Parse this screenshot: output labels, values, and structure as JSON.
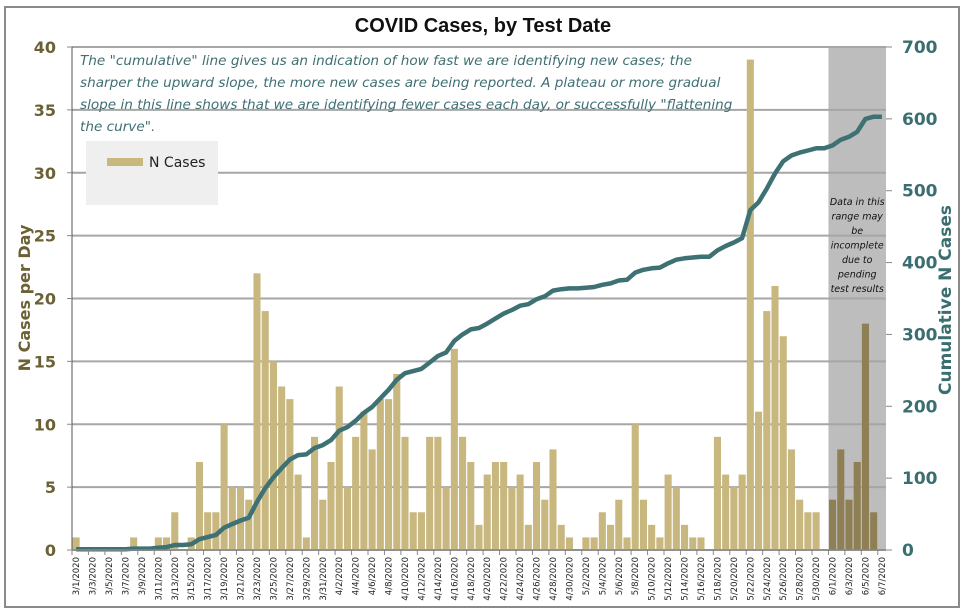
{
  "chart_data": {
    "type": "bar",
    "title": "COVID Cases, by Test Date",
    "annotation": "The \"cumulative\" line gives  us an indication of how fast we are identifying new cases; the sharper the upward slope, the more new cases are being reported. A plateau or more gradual slope in this line shows that we are identifying fewer cases each day, or successfully \"flattening the curve\".",
    "annotation_lines": [
      "The \"cumulative\" line gives  us an indication of how fast we are identifying new cases; the",
      "sharper the upward slope, the more new cases are being reported. A plateau or more gradual",
      "slope in this line shows that we are identifying fewer cases each day, or successfully \"flattening",
      "the curve\"."
    ],
    "shaded_region": {
      "start": "6/1/2020",
      "end": "6/7/2020",
      "note_lines": [
        "Data in this",
        "range  may",
        "be",
        "incomplete",
        "due to",
        "pending",
        "test results"
      ]
    },
    "legend": {
      "entries": [
        "N Cases"
      ],
      "placement": "top-left"
    },
    "ylabel": "N Cases per Day",
    "y2label": "Cumulative N Cases",
    "xlabel": "",
    "ylim": [
      0,
      40
    ],
    "y2lim": [
      0,
      700
    ],
    "yticks": [
      "0",
      "5",
      "10",
      "15",
      "20",
      "25",
      "30",
      "35",
      "40"
    ],
    "y2ticks": [
      "0",
      "100",
      "200",
      "300",
      "400",
      "500",
      "600",
      "700"
    ],
    "grid": true,
    "colors": {
      "bars": "#c8b77f",
      "bars_shaded": "#8f7f55",
      "line": "#3d7174",
      "shade": "#bdbdbd"
    },
    "dates": [
      "3/1/2020",
      "3/2/2020",
      "3/3/2020",
      "3/4/2020",
      "3/5/2020",
      "3/6/2020",
      "3/7/2020",
      "3/8/2020",
      "3/9/2020",
      "3/10/2020",
      "3/11/2020",
      "3/12/2020",
      "3/13/2020",
      "3/14/2020",
      "3/15/2020",
      "3/16/2020",
      "3/17/2020",
      "3/18/2020",
      "3/19/2020",
      "3/20/2020",
      "3/21/2020",
      "3/22/2020",
      "3/23/2020",
      "3/24/2020",
      "3/25/2020",
      "3/26/2020",
      "3/27/2020",
      "3/28/2020",
      "3/29/2020",
      "3/30/2020",
      "3/31/2020",
      "4/1/2020",
      "4/2/2020",
      "4/3/2020",
      "4/4/2020",
      "4/5/2020",
      "4/6/2020",
      "4/7/2020",
      "4/8/2020",
      "4/9/2020",
      "4/10/2020",
      "4/11/2020",
      "4/12/2020",
      "4/13/2020",
      "4/14/2020",
      "4/15/2020",
      "4/16/2020",
      "4/17/2020",
      "4/18/2020",
      "4/19/2020",
      "4/20/2020",
      "4/21/2020",
      "4/22/2020",
      "4/23/2020",
      "4/24/2020",
      "4/25/2020",
      "4/26/2020",
      "4/27/2020",
      "4/28/2020",
      "4/29/2020",
      "4/30/2020",
      "5/1/2020",
      "5/2/2020",
      "5/3/2020",
      "5/4/2020",
      "5/5/2020",
      "5/6/2020",
      "5/7/2020",
      "5/8/2020",
      "5/9/2020",
      "5/10/2020",
      "5/11/2020",
      "5/12/2020",
      "5/13/2020",
      "5/14/2020",
      "5/15/2020",
      "5/16/2020",
      "5/17/2020",
      "5/18/2020",
      "5/19/2020",
      "5/20/2020",
      "5/21/2020",
      "5/22/2020",
      "5/23/2020",
      "5/24/2020",
      "5/25/2020",
      "5/26/2020",
      "5/27/2020",
      "5/28/2020",
      "5/29/2020",
      "5/30/2020",
      "5/31/2020",
      "6/1/2020",
      "6/2/2020",
      "6/3/2020",
      "6/4/2020",
      "6/5/2020",
      "6/6/2020",
      "6/7/2020"
    ],
    "series": [
      {
        "name": "N Cases",
        "type": "bar",
        "axis": "left",
        "values": [
          1,
          0,
          0,
          0,
          0,
          0,
          0,
          1,
          0,
          0,
          1,
          1,
          3,
          0,
          1,
          7,
          3,
          3,
          10,
          5,
          5,
          4,
          22,
          19,
          15,
          13,
          12,
          6,
          1,
          9,
          4,
          7,
          13,
          5,
          9,
          11,
          8,
          12,
          12,
          14,
          9,
          3,
          3,
          9,
          9,
          5,
          16,
          9,
          7,
          2,
          6,
          7,
          7,
          5,
          6,
          2,
          7,
          4,
          8,
          2,
          1,
          0,
          1,
          1,
          3,
          2,
          4,
          1,
          10,
          4,
          2,
          1,
          6,
          5,
          2,
          1,
          1,
          0,
          9,
          6,
          5,
          6,
          39,
          11,
          19,
          21,
          17,
          8,
          4,
          3,
          3,
          0,
          4,
          8,
          4,
          7,
          18,
          3,
          0
        ]
      },
      {
        "name": "Cumulative N Cases",
        "type": "line",
        "axis": "right",
        "values": [
          1,
          1,
          1,
          1,
          1,
          1,
          1,
          2,
          2,
          2,
          3,
          4,
          7,
          7,
          8,
          15,
          18,
          21,
          31,
          36,
          41,
          45,
          67,
          86,
          101,
          114,
          126,
          132,
          133,
          142,
          146,
          153,
          166,
          171,
          180,
          191,
          199,
          211,
          223,
          237,
          246,
          249,
          252,
          261,
          270,
          275,
          291,
          300,
          307,
          309,
          315,
          322,
          329,
          334,
          340,
          342,
          349,
          353,
          361,
          363,
          364,
          364,
          365,
          366,
          369,
          371,
          375,
          376,
          386,
          390,
          392,
          393,
          399,
          404,
          406,
          407,
          408,
          408,
          417,
          423,
          428,
          434,
          473,
          484,
          503,
          524,
          541,
          549,
          553,
          556,
          559,
          559,
          563,
          571,
          575,
          582,
          600,
          603,
          603
        ]
      }
    ]
  }
}
